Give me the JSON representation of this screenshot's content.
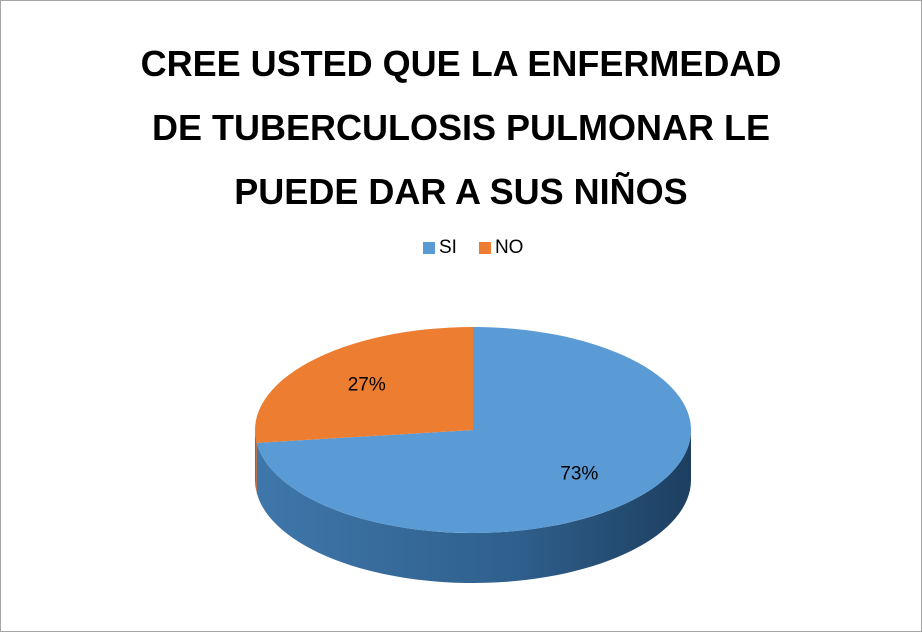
{
  "chart_data": {
    "type": "pie",
    "title": "CREE USTED QUE LA ENFERMEDAD DE TUBERCULOSIS PULMONAR LE PUEDE DAR A SUS NIÑOS",
    "categories": [
      "SI",
      "NO"
    ],
    "values": [
      73,
      27
    ],
    "value_labels": [
      "73%",
      "27%"
    ],
    "colors": [
      "#5b9bd5",
      "#ed7d31"
    ],
    "legend": "top"
  }
}
